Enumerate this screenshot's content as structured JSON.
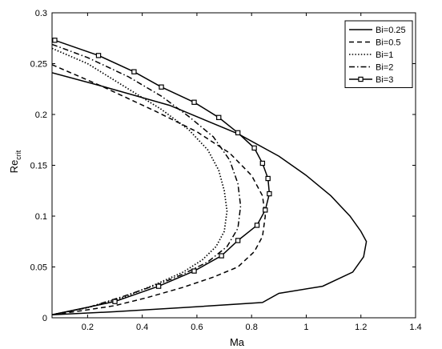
{
  "chart_data": {
    "type": "line",
    "xlabel": "Ma",
    "ylabel": "Re",
    "ylabel_subscript": "crit",
    "xlim": [
      0.07,
      1.4
    ],
    "ylim": [
      0,
      0.3
    ],
    "xticks": [
      0.2,
      0.4,
      0.6,
      0.8,
      1,
      1.2,
      1.4
    ],
    "yticks": [
      0,
      0.05,
      0.1,
      0.15,
      0.2,
      0.25,
      0.3
    ],
    "grid": false,
    "legend_position": "top-right",
    "series": [
      {
        "name": "Bi=0.25",
        "style": "solid",
        "marker": "none",
        "points": [
          [
            0.07,
            0.241
          ],
          [
            0.25,
            0.228
          ],
          [
            0.5,
            0.209
          ],
          [
            0.75,
            0.181
          ],
          [
            0.9,
            0.159
          ],
          [
            1.0,
            0.14
          ],
          [
            1.09,
            0.12
          ],
          [
            1.16,
            0.1
          ],
          [
            1.2,
            0.085
          ],
          [
            1.22,
            0.075
          ],
          [
            1.21,
            0.06
          ],
          [
            1.17,
            0.045
          ],
          [
            1.06,
            0.031
          ],
          [
            0.9,
            0.024
          ],
          [
            0.84,
            0.015
          ],
          [
            0.55,
            0.01
          ],
          [
            0.3,
            0.006
          ],
          [
            0.07,
            0.003
          ]
        ]
      },
      {
        "name": "Bi=0.5",
        "style": "dashed",
        "marker": "none",
        "points": [
          [
            0.07,
            0.249
          ],
          [
            0.25,
            0.228
          ],
          [
            0.45,
            0.203
          ],
          [
            0.6,
            0.183
          ],
          [
            0.72,
            0.162
          ],
          [
            0.8,
            0.14
          ],
          [
            0.84,
            0.12
          ],
          [
            0.85,
            0.1
          ],
          [
            0.84,
            0.08
          ],
          [
            0.81,
            0.065
          ],
          [
            0.75,
            0.05
          ],
          [
            0.66,
            0.04
          ],
          [
            0.55,
            0.03
          ],
          [
            0.42,
            0.02
          ],
          [
            0.3,
            0.012
          ],
          [
            0.18,
            0.007
          ],
          [
            0.07,
            0.003
          ]
        ]
      },
      {
        "name": "Bi=1",
        "style": "dotted",
        "marker": "none",
        "points": [
          [
            0.07,
            0.265
          ],
          [
            0.2,
            0.25
          ],
          [
            0.35,
            0.225
          ],
          [
            0.47,
            0.205
          ],
          [
            0.57,
            0.185
          ],
          [
            0.64,
            0.165
          ],
          [
            0.68,
            0.145
          ],
          [
            0.7,
            0.125
          ],
          [
            0.71,
            0.105
          ],
          [
            0.7,
            0.085
          ],
          [
            0.67,
            0.07
          ],
          [
            0.62,
            0.057
          ],
          [
            0.55,
            0.045
          ],
          [
            0.45,
            0.033
          ],
          [
            0.33,
            0.02
          ],
          [
            0.2,
            0.01
          ],
          [
            0.07,
            0.003
          ]
        ]
      },
      {
        "name": "Bi=2",
        "style": "dashdot",
        "marker": "none",
        "points": [
          [
            0.07,
            0.269
          ],
          [
            0.2,
            0.256
          ],
          [
            0.35,
            0.237
          ],
          [
            0.47,
            0.218
          ],
          [
            0.57,
            0.198
          ],
          [
            0.66,
            0.178
          ],
          [
            0.72,
            0.155
          ],
          [
            0.75,
            0.132
          ],
          [
            0.76,
            0.11
          ],
          [
            0.75,
            0.088
          ],
          [
            0.71,
            0.07
          ],
          [
            0.64,
            0.055
          ],
          [
            0.55,
            0.043
          ],
          [
            0.46,
            0.033
          ],
          [
            0.33,
            0.021
          ],
          [
            0.2,
            0.01
          ],
          [
            0.07,
            0.003
          ]
        ]
      },
      {
        "name": "Bi=3",
        "style": "solid",
        "marker": "square",
        "points": [
          [
            0.08,
            0.273
          ],
          [
            0.24,
            0.258
          ],
          [
            0.37,
            0.242
          ],
          [
            0.47,
            0.227
          ],
          [
            0.59,
            0.212
          ],
          [
            0.68,
            0.197
          ],
          [
            0.75,
            0.182
          ],
          [
            0.81,
            0.167
          ],
          [
            0.84,
            0.152
          ],
          [
            0.86,
            0.137
          ],
          [
            0.865,
            0.122
          ],
          [
            0.85,
            0.106
          ],
          [
            0.82,
            0.091
          ],
          [
            0.75,
            0.076
          ],
          [
            0.69,
            0.061
          ],
          [
            0.59,
            0.046
          ],
          [
            0.46,
            0.031
          ],
          [
            0.3,
            0.016
          ],
          [
            0.07,
            0.003
          ]
        ]
      }
    ]
  }
}
